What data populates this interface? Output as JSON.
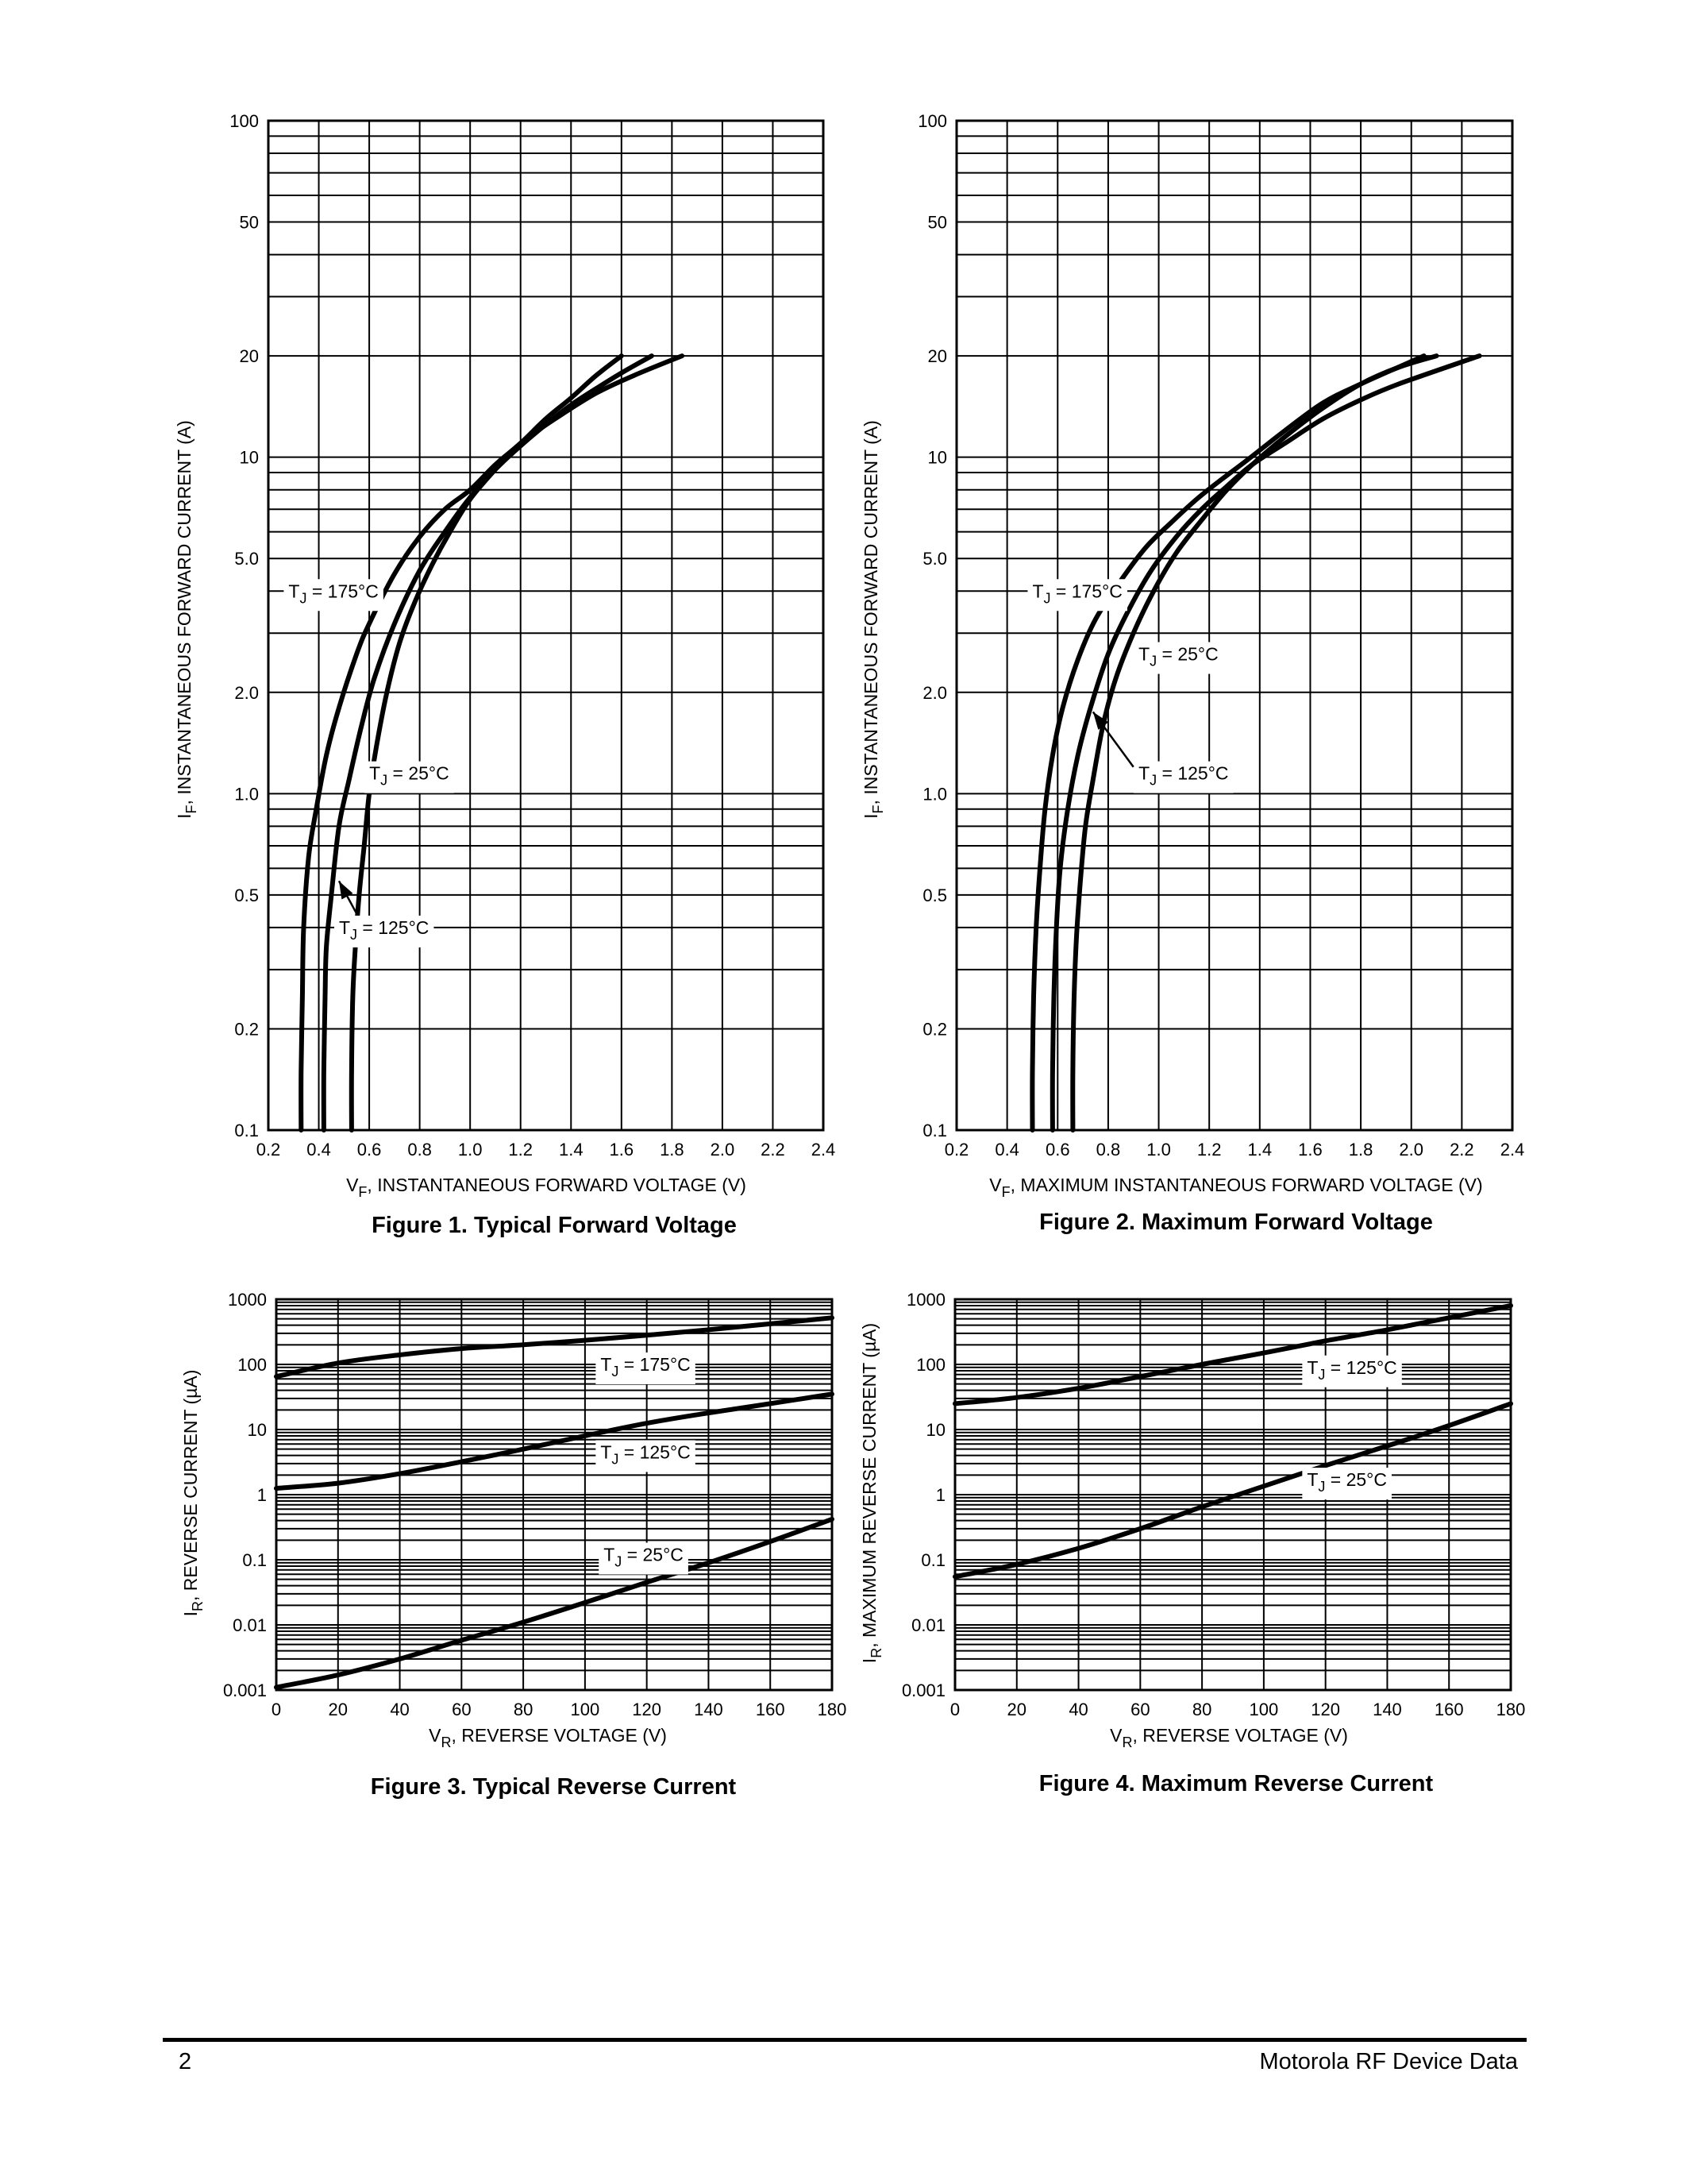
{
  "footer": {
    "page_number": "2",
    "source": "Motorola RF Device Data"
  },
  "colors": {
    "ink": "#000000",
    "paper": "#ffffff"
  },
  "chart_data": [
    {
      "id": "fig1",
      "type": "line",
      "caption": "Figure 1. Typical Forward Voltage",
      "ylabel": "I",
      "ylabel_sub": "F",
      "ylabel_rest": ", INSTANTANEOUS FORWARD CURRENT (A)",
      "xlabel": "V",
      "xlabel_sub": "F",
      "xlabel_rest": ", INSTANTANEOUS FORWARD VOLTAGE (V)",
      "xlim": [
        0.2,
        2.4
      ],
      "ylim": [
        0.1,
        100
      ],
      "yscale": "log",
      "grid": true,
      "x_ticks": [
        0.2,
        0.4,
        0.6,
        0.8,
        1.0,
        1.2,
        1.4,
        1.6,
        1.8,
        2.0,
        2.2,
        2.4
      ],
      "x_tick_labels": [
        "0.2",
        "0.4",
        "0.6",
        "0.8",
        "1.0",
        "1.2",
        "1.4",
        "1.6",
        "1.8",
        "2.0",
        "2.2",
        "2.4"
      ],
      "y_ticks": [
        0.1,
        0.2,
        0.5,
        1,
        2,
        5,
        10,
        20,
        50,
        100
      ],
      "y_tick_labels": [
        "0.1",
        "0.2",
        "0.5",
        "1.0",
        "2.0",
        "5.0",
        "10",
        "20",
        "50",
        "100"
      ],
      "y_grid": [
        0.1,
        0.2,
        0.3,
        0.4,
        0.5,
        0.6,
        0.7,
        0.8,
        0.9,
        1,
        2,
        3,
        4,
        5,
        6,
        7,
        8,
        9,
        10,
        20,
        30,
        40,
        50,
        60,
        70,
        80,
        90,
        100
      ],
      "series": [
        {
          "name": "T_J = 175°C",
          "label_main": "T",
          "label_sub": "J",
          "label_rest": " = 175°C",
          "label_at": [
            0.28,
            4.0
          ],
          "x": [
            0.33,
            0.33,
            0.335,
            0.34,
            0.36,
            0.39,
            0.43,
            0.48,
            0.55,
            0.6,
            0.7,
            0.8,
            0.9,
            1.0,
            1.1,
            1.2,
            1.3,
            1.4,
            1.5,
            1.6
          ],
          "y": [
            0.1,
            0.15,
            0.25,
            0.4,
            0.65,
            0.9,
            1.3,
            1.8,
            2.6,
            3.2,
            4.5,
            5.8,
            7.0,
            8.0,
            9.5,
            11,
            13,
            15,
            17.5,
            20
          ]
        },
        {
          "name": "T_J = 125°C",
          "label_main": "T",
          "label_sub": "J",
          "label_rest": " = 125°C",
          "label_at": [
            0.48,
            0.4
          ],
          "arrow_to": [
            0.48,
            0.55
          ],
          "arrow_from": [
            0.55,
            0.44
          ],
          "x": [
            0.42,
            0.42,
            0.425,
            0.43,
            0.45,
            0.48,
            0.52,
            0.57,
            0.62,
            0.7,
            0.8,
            0.9,
            1.0,
            1.1,
            1.2,
            1.3,
            1.4,
            1.5,
            1.6,
            1.72
          ],
          "y": [
            0.1,
            0.15,
            0.25,
            0.35,
            0.5,
            0.8,
            1.1,
            1.6,
            2.2,
            3.2,
            4.6,
            6.0,
            7.6,
            9.2,
            10.8,
            12.5,
            14.3,
            16,
            17.8,
            20
          ]
        },
        {
          "name": "T_J = 25°C",
          "label_main": "T",
          "label_sub": "J",
          "label_rest": " = 25°C",
          "label_at": [
            0.6,
            1.15
          ],
          "x": [
            0.53,
            0.53,
            0.535,
            0.545,
            0.56,
            0.58,
            0.6,
            0.63,
            0.67,
            0.72,
            0.78,
            0.85,
            0.92,
            1.0,
            1.1,
            1.2,
            1.35,
            1.5,
            1.65,
            1.84
          ],
          "y": [
            0.1,
            0.15,
            0.25,
            0.35,
            0.5,
            0.7,
            1.0,
            1.4,
            2.0,
            2.8,
            3.7,
            4.8,
            6.0,
            7.5,
            9.2,
            11,
            13.2,
            15.5,
            17.5,
            20
          ]
        }
      ]
    },
    {
      "id": "fig2",
      "type": "line",
      "caption": "Figure 2. Maximum Forward Voltage",
      "ylabel": "I",
      "ylabel_sub": "F",
      "ylabel_rest": ", INSTANTANEOUS FORWARD CURRENT (A)",
      "xlabel": "V",
      "xlabel_sub": "F",
      "xlabel_rest": ", MAXIMUM INSTANTANEOUS FORWARD VOLTAGE (V)",
      "xlim": [
        0.2,
        2.4
      ],
      "ylim": [
        0.1,
        100
      ],
      "yscale": "log",
      "grid": true,
      "x_ticks": [
        0.2,
        0.4,
        0.6,
        0.8,
        1.0,
        1.2,
        1.4,
        1.6,
        1.8,
        2.0,
        2.2,
        2.4
      ],
      "x_tick_labels": [
        "0.2",
        "0.4",
        "0.6",
        "0.8",
        "1.0",
        "1.2",
        "1.4",
        "1.6",
        "1.8",
        "2.0",
        "2.2",
        "2.4"
      ],
      "y_ticks": [
        0.1,
        0.2,
        0.5,
        1,
        2,
        5,
        10,
        20,
        50,
        100
      ],
      "y_tick_labels": [
        "0.1",
        "0.2",
        "0.5",
        "1.0",
        "2.0",
        "5.0",
        "10",
        "20",
        "50",
        "100"
      ],
      "y_grid": [
        0.1,
        0.2,
        0.3,
        0.4,
        0.5,
        0.6,
        0.7,
        0.8,
        0.9,
        1,
        2,
        3,
        4,
        5,
        6,
        7,
        8,
        9,
        10,
        20,
        30,
        40,
        50,
        60,
        70,
        80,
        90,
        100
      ],
      "series": [
        {
          "name": "T_J = 175°C",
          "label_main": "T",
          "label_sub": "J",
          "label_rest": " = 175°C",
          "label_at": [
            0.5,
            4.0
          ],
          "x": [
            0.5,
            0.5,
            0.505,
            0.515,
            0.53,
            0.55,
            0.58,
            0.62,
            0.68,
            0.75,
            0.85,
            0.95,
            1.05,
            1.15,
            1.25,
            1.35,
            1.5,
            1.65,
            1.8,
            2.05
          ],
          "y": [
            0.1,
            0.15,
            0.25,
            0.4,
            0.6,
            0.9,
            1.3,
            1.8,
            2.5,
            3.3,
            4.3,
            5.4,
            6.4,
            7.5,
            8.6,
            9.8,
            12,
            14.5,
            16.5,
            20
          ]
        },
        {
          "name": "T_J = 25°C",
          "label_main": "T",
          "label_sub": "J",
          "label_rest": " = 25°C",
          "label_at": [
            0.92,
            2.6
          ],
          "x": [
            0.66,
            0.66,
            0.665,
            0.675,
            0.69,
            0.71,
            0.74,
            0.78,
            0.83,
            0.9,
            0.98,
            1.07,
            1.17,
            1.27,
            1.37,
            1.5,
            1.65,
            1.8,
            1.95,
            2.1
          ],
          "y": [
            0.1,
            0.15,
            0.25,
            0.38,
            0.55,
            0.8,
            1.1,
            1.6,
            2.2,
            3.0,
            4.0,
            5.2,
            6.5,
            8.0,
            9.5,
            11.5,
            14,
            16.5,
            18.5,
            20
          ]
        },
        {
          "name": "T_J = 125°C",
          "label_main": "T",
          "label_sub": "J",
          "label_rest": " = 125°C",
          "label_at": [
            0.92,
            1.15
          ],
          "arrow_to": [
            0.74,
            1.75
          ],
          "arrow_from": [
            0.9,
            1.2
          ],
          "x": [
            0.58,
            0.58,
            0.585,
            0.595,
            0.61,
            0.64,
            0.68,
            0.73,
            0.8,
            0.88,
            0.97,
            1.07,
            1.17,
            1.27,
            1.37,
            1.5,
            1.65,
            1.8,
            1.95,
            2.27
          ],
          "y": [
            0.1,
            0.15,
            0.25,
            0.4,
            0.6,
            0.9,
            1.3,
            1.8,
            2.6,
            3.5,
            4.6,
            5.8,
            7.0,
            8.2,
            9.5,
            11,
            13,
            14.8,
            16.5,
            20
          ]
        }
      ]
    },
    {
      "id": "fig3",
      "type": "line",
      "caption": "Figure 3. Typical Reverse Current",
      "ylabel": "I",
      "ylabel_sub": "R",
      "ylabel_rest": ", REVERSE CURRENT (µA)",
      "xlabel": "V",
      "xlabel_sub": "R",
      "xlabel_rest": ", REVERSE VOLTAGE (V)",
      "xlim": [
        0,
        180
      ],
      "ylim": [
        0.001,
        1000
      ],
      "yscale": "log",
      "grid": true,
      "x_ticks": [
        0,
        20,
        40,
        60,
        80,
        100,
        120,
        140,
        160,
        180
      ],
      "x_tick_labels": [
        "0",
        "20",
        "40",
        "60",
        "80",
        "100",
        "120",
        "140",
        "160",
        "180"
      ],
      "y_ticks": [
        0.001,
        0.01,
        0.1,
        1,
        10,
        100,
        1000
      ],
      "y_tick_labels": [
        "0.001",
        "0.01",
        "0.1",
        "1",
        "10",
        "100",
        "1000"
      ],
      "y_grid": [
        0.001,
        0.002,
        0.003,
        0.004,
        0.005,
        0.006,
        0.007,
        0.008,
        0.009,
        0.01,
        0.02,
        0.03,
        0.04,
        0.05,
        0.06,
        0.07,
        0.08,
        0.09,
        0.1,
        0.2,
        0.3,
        0.4,
        0.5,
        0.6,
        0.7,
        0.8,
        0.9,
        1,
        2,
        3,
        4,
        5,
        6,
        7,
        8,
        9,
        10,
        20,
        30,
        40,
        50,
        60,
        70,
        80,
        90,
        100,
        200,
        300,
        400,
        500,
        600,
        700,
        800,
        900,
        1000
      ],
      "series": [
        {
          "name": "T_J = 175°C",
          "label_main": "T",
          "label_sub": "J",
          "label_rest": " = 175°C",
          "label_at": [
            105,
            100
          ],
          "x": [
            0,
            20,
            40,
            60,
            80,
            100,
            120,
            140,
            160,
            180
          ],
          "y": [
            65,
            105,
            140,
            175,
            200,
            235,
            280,
            340,
            420,
            520
          ]
        },
        {
          "name": "T_J = 125°C",
          "label_main": "T",
          "label_sub": "J",
          "label_rest": " = 125°C",
          "label_at": [
            105,
            4.5
          ],
          "x": [
            0,
            20,
            40,
            60,
            80,
            100,
            120,
            140,
            160,
            180
          ],
          "y": [
            1.25,
            1.5,
            2.1,
            3.2,
            5.0,
            8.0,
            12.5,
            18,
            25,
            35
          ]
        },
        {
          "name": "T_J = 25°C",
          "label_main": "T",
          "label_sub": "J",
          "label_rest": " = 25°C",
          "label_at": [
            106,
            0.12
          ],
          "x": [
            0,
            20,
            40,
            60,
            80,
            100,
            120,
            140,
            160,
            180
          ],
          "y": [
            0.0011,
            0.0017,
            0.003,
            0.0058,
            0.011,
            0.022,
            0.045,
            0.09,
            0.19,
            0.42
          ]
        }
      ]
    },
    {
      "id": "fig4",
      "type": "line",
      "caption": "Figure 4. Maximum Reverse Current",
      "ylabel": "I",
      "ylabel_sub": "R",
      "ylabel_rest": ", MAXIMUM REVERSE CURRENT (µA)",
      "xlabel": "V",
      "xlabel_sub": "R",
      "xlabel_rest": ", REVERSE VOLTAGE (V)",
      "xlim": [
        0,
        180
      ],
      "ylim": [
        0.001,
        1000
      ],
      "yscale": "log",
      "grid": true,
      "x_ticks": [
        0,
        20,
        40,
        60,
        80,
        100,
        120,
        140,
        160,
        180
      ],
      "x_tick_labels": [
        "0",
        "20",
        "40",
        "60",
        "80",
        "100",
        "120",
        "140",
        "160",
        "180"
      ],
      "y_ticks": [
        0.001,
        0.01,
        0.1,
        1,
        10,
        100,
        1000
      ],
      "y_tick_labels": [
        "0.001",
        "0.01",
        "0.1",
        "1",
        "10",
        "100",
        "1000"
      ],
      "y_grid": [
        0.001,
        0.002,
        0.003,
        0.004,
        0.005,
        0.006,
        0.007,
        0.008,
        0.009,
        0.01,
        0.02,
        0.03,
        0.04,
        0.05,
        0.06,
        0.07,
        0.08,
        0.09,
        0.1,
        0.2,
        0.3,
        0.4,
        0.5,
        0.6,
        0.7,
        0.8,
        0.9,
        1,
        2,
        3,
        4,
        5,
        6,
        7,
        8,
        9,
        10,
        20,
        30,
        40,
        50,
        60,
        70,
        80,
        90,
        100,
        200,
        300,
        400,
        500,
        600,
        700,
        800,
        900,
        1000
      ],
      "series": [
        {
          "name": "T_J = 125°C",
          "label_main": "T",
          "label_sub": "J",
          "label_rest": " = 125°C",
          "label_at": [
            114,
            90
          ],
          "x": [
            0,
            20,
            40,
            60,
            80,
            100,
            120,
            140,
            160,
            180
          ],
          "y": [
            25,
            31,
            43,
            65,
            100,
            150,
            230,
            340,
            520,
            800
          ]
        },
        {
          "name": "T_J = 25°C",
          "label_main": "T",
          "label_sub": "J",
          "label_rest": " = 25°C",
          "label_at": [
            114,
            1.7
          ],
          "x": [
            0,
            20,
            40,
            60,
            80,
            100,
            120,
            140,
            160,
            180
          ],
          "y": [
            0.055,
            0.085,
            0.15,
            0.3,
            0.65,
            1.35,
            2.8,
            5.6,
            11.5,
            25
          ]
        }
      ]
    }
  ]
}
